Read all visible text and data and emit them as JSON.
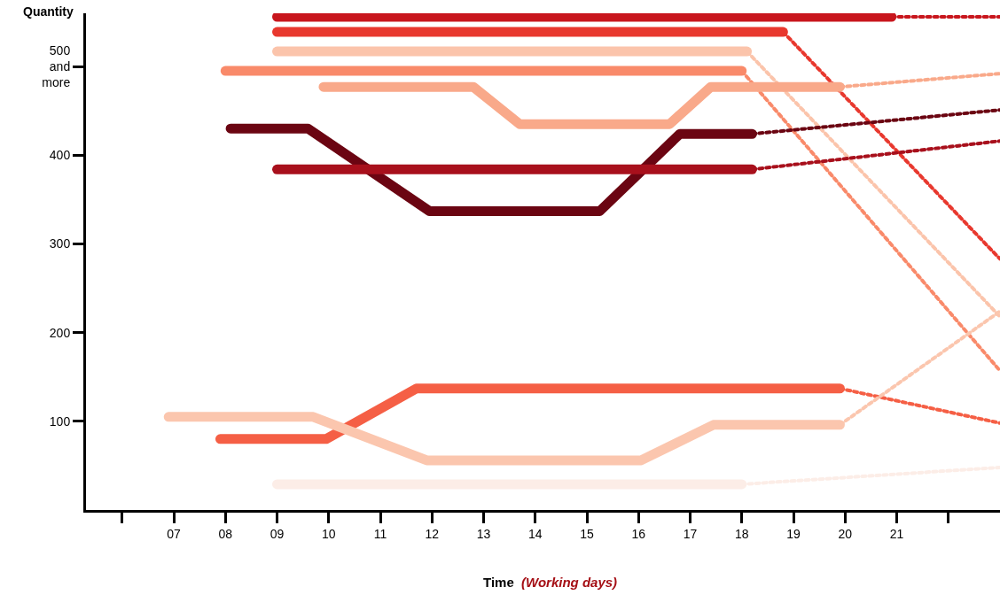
{
  "chart_data": {
    "type": "line",
    "xlabel": "Time",
    "ylabel": "Quantity",
    "annotations": [
      "(Working days)"
    ],
    "xlim": [
      5.3,
      23
    ],
    "ylim": [
      0,
      560
    ],
    "xticks": [
      {
        "value": 6,
        "label": null
      },
      {
        "value": 7,
        "label": "07"
      },
      {
        "value": 8,
        "label": "08"
      },
      {
        "value": 9,
        "label": "09"
      },
      10,
      11,
      12,
      13,
      14,
      15,
      16,
      17,
      18,
      19,
      20,
      21,
      {
        "value": 22,
        "label": null
      }
    ],
    "yticks": [
      100,
      200,
      300,
      400,
      {
        "value": 500,
        "label": "500\nand\nmore"
      }
    ],
    "series": [
      {
        "color": "#c8161d",
        "line_style": "solid",
        "x": [
          9,
          20.9
        ],
        "values": [
          556,
          556
        ]
      },
      {
        "color": "#c8161d",
        "line_style": "dotted",
        "x": [
          20.9,
          23
        ],
        "values": [
          556,
          556
        ]
      },
      {
        "color": "#e8382e",
        "line_style": "solid",
        "x": [
          9,
          18.8
        ],
        "values": [
          539,
          539
        ]
      },
      {
        "color": "#e8382e",
        "line_style": "dotted",
        "x": [
          18.8,
          23
        ],
        "values": [
          539,
          283
        ]
      },
      {
        "color": "#fbc4ab",
        "line_style": "solid",
        "x": [
          9,
          18.1
        ],
        "values": [
          517,
          517
        ]
      },
      {
        "color": "#fbc4ab",
        "line_style": "dotted",
        "x": [
          18.1,
          23
        ],
        "values": [
          517,
          218
        ]
      },
      {
        "color": "#f98a6a",
        "line_style": "solid",
        "x": [
          8,
          18
        ],
        "values": [
          495,
          495
        ]
      },
      {
        "color": "#f98a6a",
        "line_style": "dotted",
        "x": [
          18,
          23
        ],
        "values": [
          495,
          157
        ]
      },
      {
        "color": "#f9a98a",
        "line_style": "solid",
        "x": [
          9.9,
          12.8,
          13.7,
          16.6,
          17.4,
          19.9
        ],
        "values": [
          477,
          477,
          435,
          435,
          477,
          477
        ]
      },
      {
        "color": "#f9a98a",
        "line_style": "dotted",
        "x": [
          19.9,
          23
        ],
        "values": [
          477,
          492
        ]
      },
      {
        "color": "#6b0512",
        "line_style": "solid",
        "x": [
          8.1,
          9.6,
          11.95,
          15.25,
          16.8,
          18.2
        ],
        "values": [
          430,
          430,
          337,
          337,
          424,
          424
        ]
      },
      {
        "color": "#6b0512",
        "line_style": "dotted",
        "x": [
          18.2,
          23
        ],
        "values": [
          424,
          451
        ]
      },
      {
        "color": "#a8101c",
        "line_style": "solid",
        "x": [
          9,
          18.2
        ],
        "values": [
          384,
          384
        ]
      },
      {
        "color": "#a8101c",
        "line_style": "dotted",
        "x": [
          18.2,
          23
        ],
        "values": [
          384,
          416
        ]
      },
      {
        "color": "#f55f45",
        "line_style": "solid",
        "x": [
          7.9,
          9.95,
          11.7,
          19.9
        ],
        "values": [
          80,
          80,
          137,
          137
        ]
      },
      {
        "color": "#f55f45",
        "line_style": "dotted",
        "x": [
          19.9,
          23
        ],
        "values": [
          137,
          98
        ]
      },
      {
        "color": "#fbc6ae",
        "line_style": "solid",
        "x": [
          6.9,
          9.7,
          11.9,
          16.05,
          17.45,
          19.9
        ],
        "values": [
          105,
          105,
          56,
          56,
          96,
          96
        ]
      },
      {
        "color": "#fbc6ae",
        "line_style": "dotted",
        "x": [
          19.9,
          23
        ],
        "values": [
          96,
          224
        ]
      },
      {
        "color": "#fcede7",
        "line_style": "solid",
        "x": [
          9,
          18
        ],
        "values": [
          29,
          29
        ]
      },
      {
        "color": "#fcede7",
        "line_style": "dotted",
        "x": [
          18,
          23
        ],
        "values": [
          29,
          48
        ]
      }
    ]
  }
}
